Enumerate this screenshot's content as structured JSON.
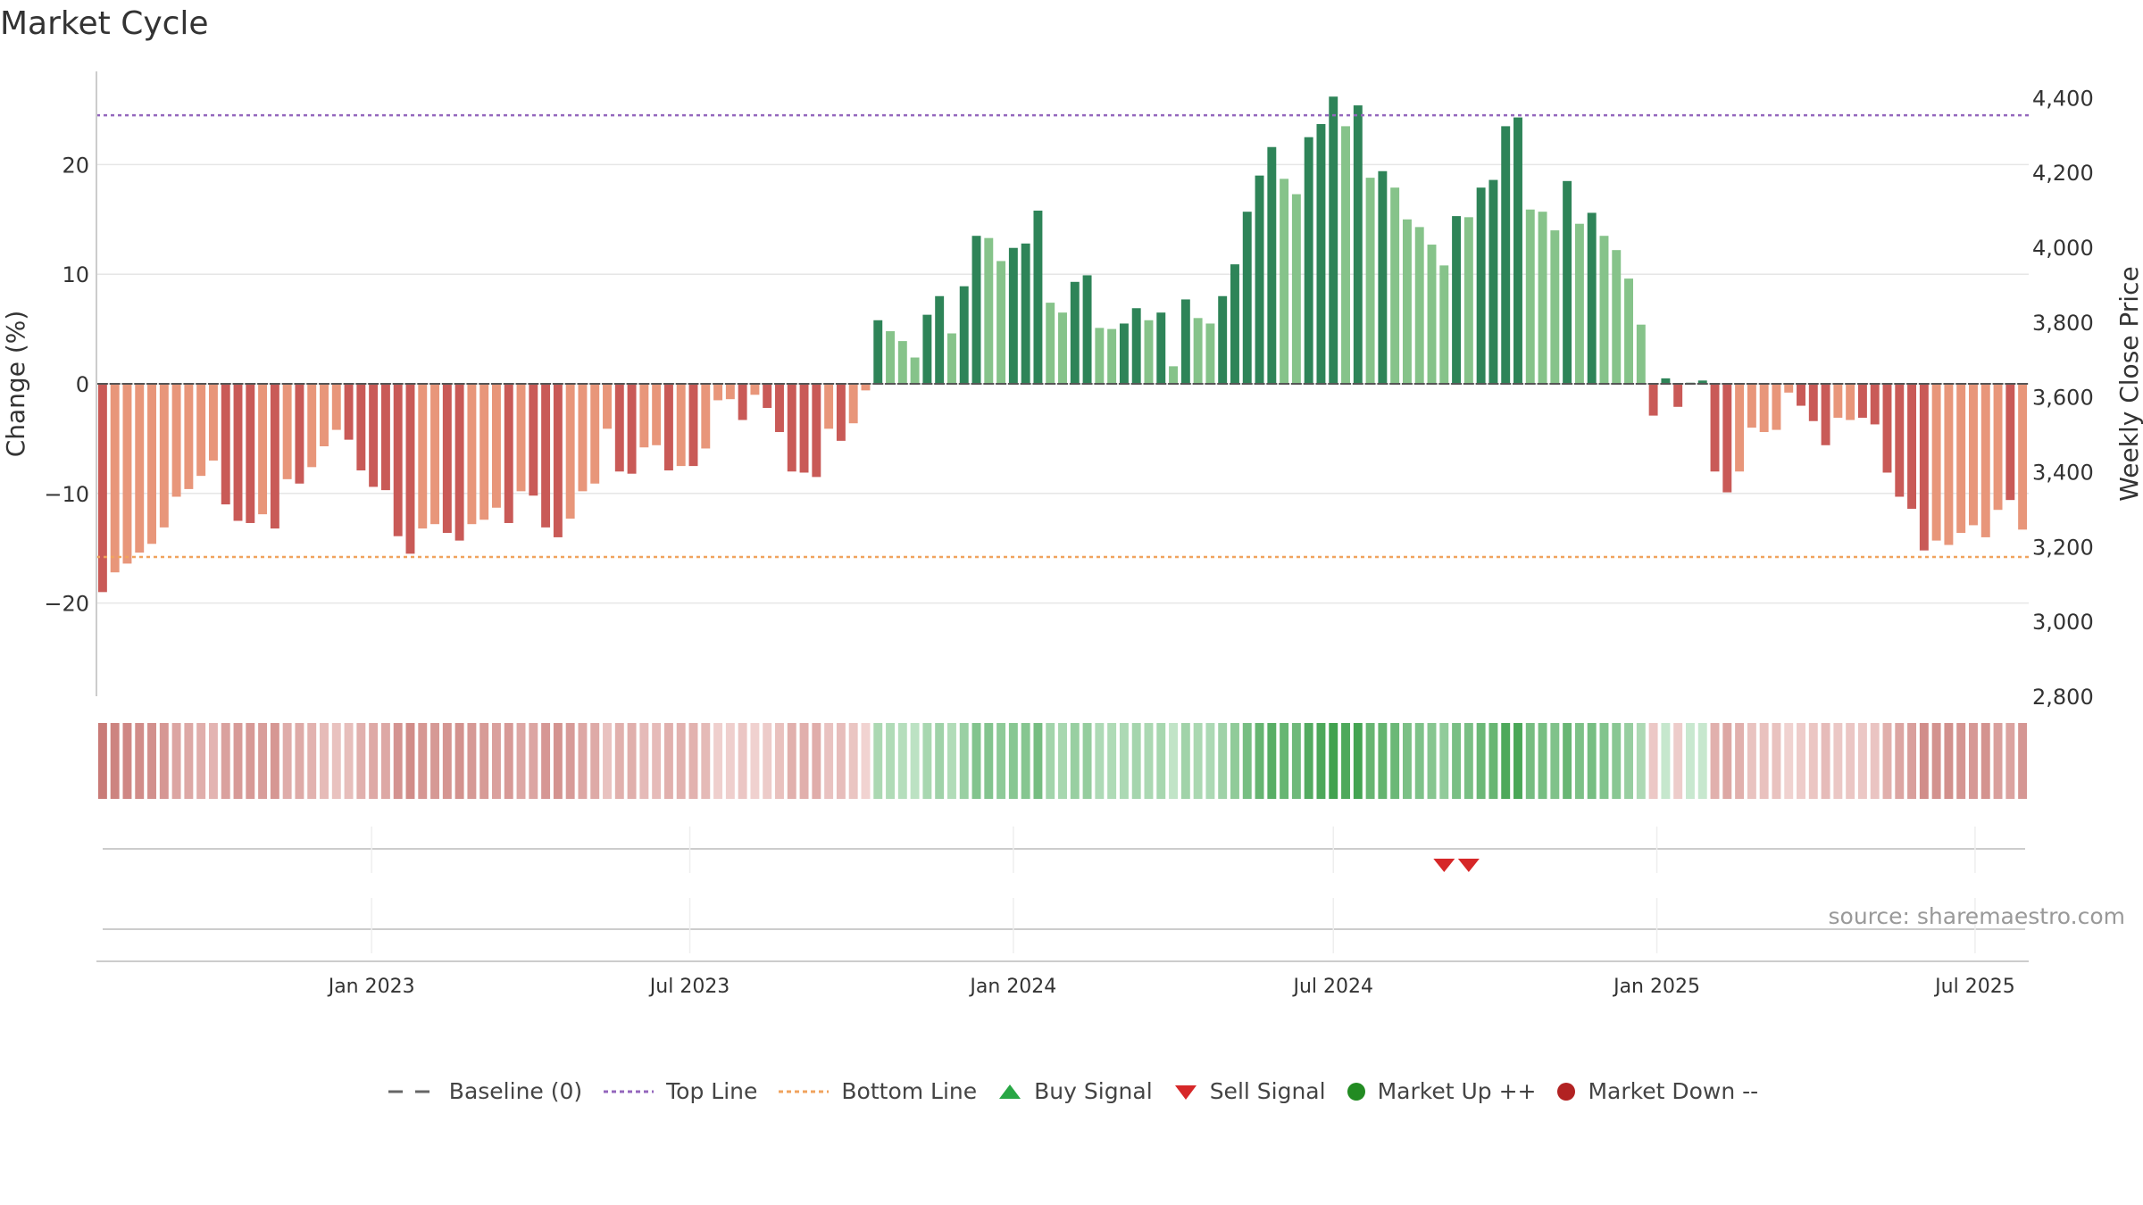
{
  "title": "Market Cycle",
  "source": "source: sharemaestro.com",
  "colors": {
    "pos_dark": "#2e8458",
    "pos_light": "#86c38a",
    "neg_dark": "#c95a57",
    "neg_light": "#e8967a",
    "top_line": "#9467bd",
    "bottom_line": "#f0a35e",
    "baseline": "#666666",
    "buy": "#28a745",
    "sell": "#d62728",
    "market_up": "#228b22",
    "market_down": "#b22222"
  },
  "legend": {
    "baseline": "Baseline (0)",
    "top_line": "Top Line",
    "bottom_line": "Bottom Line",
    "buy": "Buy Signal",
    "sell": "Sell Signal",
    "market_up": "Market Up ++",
    "market_down": "Market Down --"
  },
  "chart_data": {
    "type": "bar",
    "title": "Market Cycle",
    "x_start": "2022-08-01",
    "x_interval": "week",
    "x_ticks": [
      "Jan 2023",
      "Jul 2023",
      "Jan 2024",
      "Jul 2024",
      "Jan 2025",
      "Jul 2025"
    ],
    "x_tick_dates": [
      "2023-01-01",
      "2023-07-01",
      "2024-01-01",
      "2024-07-01",
      "2025-01-01",
      "2025-07-01"
    ],
    "y_left": {
      "label": "Change (%)",
      "range": [
        -28.5,
        28.5
      ],
      "ticks": [
        -20,
        -10,
        0,
        10,
        20
      ]
    },
    "y_right": {
      "label": "Weekly Close Price",
      "range": [
        2800,
        4470
      ],
      "ticks": [
        "2,800",
        "3,000",
        "3,200",
        "3,400",
        "3,600",
        "3,800",
        "4,000",
        "4,200",
        "4,400"
      ]
    },
    "top_line": 24.5,
    "bottom_line": -15.8,
    "baseline": 0,
    "series": [
      {
        "values": [
          -19,
          -17.2,
          -16.4,
          -15.4,
          -14.6,
          -13.1,
          -10.3,
          -9.6,
          -8.4,
          -7,
          -11,
          -12.5,
          -12.7,
          -11.9,
          -13.2,
          -8.7,
          -9.1,
          -7.6,
          -5.7,
          -4.2,
          -5.1,
          -7.9,
          -9.4,
          -9.7,
          -13.9,
          -15.5,
          -13.2,
          -12.8,
          -13.6,
          -14.3,
          -12.8,
          -12.4,
          -11.3,
          -12.7,
          -9.8,
          -10.2,
          -13.1,
          -14,
          -12.3,
          -9.8,
          -9.1,
          -4.1,
          -8,
          -8.2,
          -5.8,
          -5.6,
          -7.9,
          -7.5,
          -7.5,
          -5.9,
          -1.5,
          -1.4,
          -3.3,
          -1,
          -2.2,
          -4.4,
          -8,
          -8.1,
          -8.5,
          -4.1,
          -5.2,
          -3.6,
          -0.6,
          5.8,
          4.8,
          3.9,
          2.4,
          6.3,
          8,
          4.6,
          8.9,
          13.5,
          13.3,
          11.2,
          12.4,
          12.8,
          15.8,
          7.4,
          6.5,
          9.3,
          9.9,
          5.1,
          5,
          5.5,
          6.9,
          5.8,
          6.5,
          1.6,
          7.7,
          6,
          5.5,
          8,
          10.9,
          15.7,
          19,
          21.6,
          18.7,
          17.3,
          22.5,
          23.7,
          26.2,
          23.5,
          25.4,
          18.8,
          19.4,
          17.9,
          15,
          14.3,
          12.7,
          10.8,
          15.3,
          15.2,
          17.9,
          18.6,
          23.5,
          24.3,
          15.9,
          15.7,
          14,
          18.5,
          14.6,
          15.6,
          13.5,
          12.2,
          9.6,
          5.4,
          -2.9,
          0.5,
          -2.1,
          0.1,
          0.3,
          -8,
          -9.9,
          -8,
          -4,
          -4.4,
          -4.2,
          -0.8,
          -2,
          -3.4,
          -5.6,
          -3.1,
          -3.3,
          -3.1,
          -3.7,
          -8.1,
          -10.3,
          -11.4,
          -15.2,
          -14.3,
          -14.7,
          -13.6,
          -12.9,
          -14,
          -11.5,
          -10.6,
          -13.3
        ],
        "shade": [
          "d",
          "l",
          "l",
          "l",
          "l",
          "l",
          "l",
          "l",
          "l",
          "l",
          "d",
          "d",
          "d",
          "l",
          "d",
          "l",
          "d",
          "l",
          "l",
          "l",
          "d",
          "d",
          "d",
          "d",
          "d",
          "d",
          "l",
          "l",
          "d",
          "d",
          "l",
          "l",
          "l",
          "d",
          "l",
          "d",
          "d",
          "d",
          "l",
          "l",
          "l",
          "l",
          "d",
          "d",
          "l",
          "l",
          "d",
          "l",
          "d",
          "l",
          "l",
          "l",
          "d",
          "l",
          "d",
          "d",
          "d",
          "d",
          "d",
          "l",
          "d",
          "l",
          "l",
          "d",
          "l",
          "l",
          "l",
          "d",
          "d",
          "l",
          "d",
          "d",
          "l",
          "l",
          "d",
          "d",
          "d",
          "l",
          "l",
          "d",
          "d",
          "l",
          "l",
          "d",
          "d",
          "l",
          "d",
          "l",
          "d",
          "l",
          "l",
          "d",
          "d",
          "d",
          "d",
          "d",
          "l",
          "l",
          "d",
          "d",
          "d",
          "l",
          "d",
          "l",
          "d",
          "l",
          "l",
          "l",
          "l",
          "l",
          "d",
          "l",
          "d",
          "d",
          "d",
          "d",
          "l",
          "l",
          "l",
          "d",
          "l",
          "d",
          "l",
          "l",
          "l",
          "l",
          "d",
          "d",
          "d",
          "d",
          "d",
          "d",
          "d",
          "l",
          "l",
          "l",
          "l",
          "l",
          "d",
          "d",
          "d",
          "l",
          "l",
          "d",
          "d",
          "d",
          "d",
          "d",
          "d",
          "l",
          "l",
          "l",
          "l",
          "l",
          "l",
          "d"
        ],
        "marker": "dash"
      }
    ],
    "heat_strip": {
      "values_from": "series[0].values",
      "color_scale": [
        "#c97b77",
        "#f2d6d4",
        "#c9e8cf",
        "#41a24f"
      ]
    },
    "sell_signals": [
      "2024-09-02",
      "2024-09-16"
    ],
    "buy_signals": []
  }
}
